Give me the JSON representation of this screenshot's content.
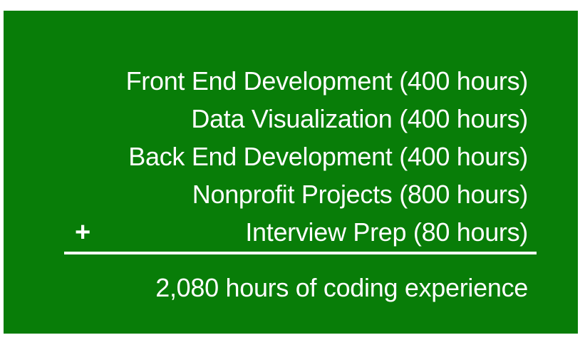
{
  "items": [
    {
      "label": "Front End Development (400 hours)"
    },
    {
      "label": "Data Visualization (400 hours)"
    },
    {
      "label": "Back End Development (400 hours)"
    },
    {
      "label": "Nonprofit Projects (800 hours)"
    },
    {
      "label": "Interview Prep (80 hours)"
    }
  ],
  "operator": "+",
  "total": "2,080 hours of coding experience",
  "colors": {
    "background": "#087d08",
    "text": "#ffffff"
  }
}
